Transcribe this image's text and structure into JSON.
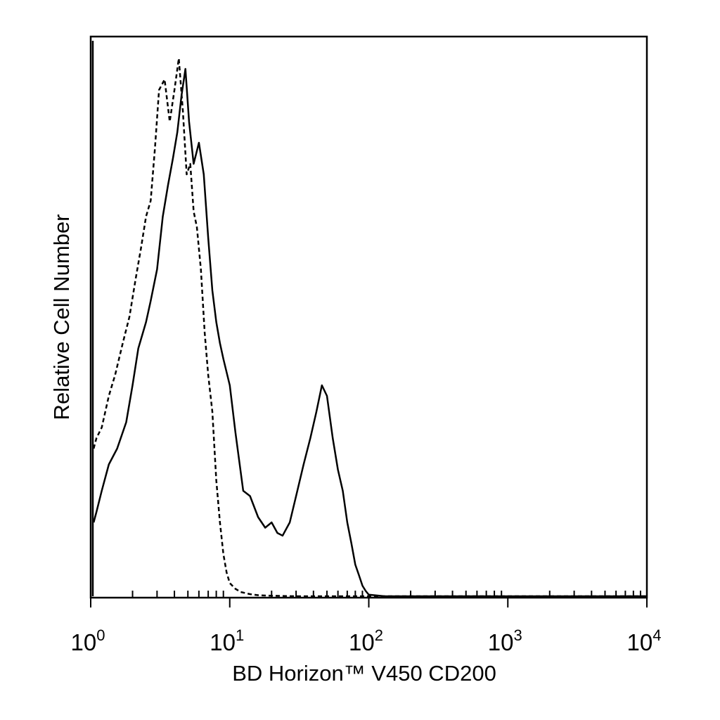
{
  "chart_data": {
    "type": "line",
    "title": "",
    "xlabel": "BD Horizon™ V450 CD200",
    "ylabel": "Relative Cell Number",
    "x_scale": "log10",
    "xlim": [
      1,
      10000
    ],
    "ylim": [
      0,
      1
    ],
    "grid": false,
    "legend": "none",
    "x_ticks": [
      {
        "value": 1,
        "base": "10",
        "exp": "0"
      },
      {
        "value": 10,
        "base": "10",
        "exp": "1"
      },
      {
        "value": 100,
        "base": "10",
        "exp": "2"
      },
      {
        "value": 1000,
        "base": "10",
        "exp": "3"
      },
      {
        "value": 10000,
        "base": "10",
        "exp": "4"
      }
    ],
    "series": [
      {
        "style": "solid",
        "color": "#000000",
        "x": [
          1.05,
          1.1,
          1.2,
          1.35,
          1.55,
          1.8,
          2.0,
          2.2,
          2.5,
          2.7,
          3.0,
          3.3,
          3.6,
          3.9,
          4.2,
          4.5,
          4.8,
          5.1,
          5.5,
          6.0,
          6.5,
          7.0,
          7.5,
          8.0,
          8.5,
          9.0,
          10.0,
          11.0,
          12.5,
          14.0,
          16.0,
          18.0,
          20.0,
          22.0,
          24.0,
          27.0,
          30.0,
          34.0,
          38.0,
          42.0,
          46.0,
          50.0,
          55.0,
          60.0,
          65.0,
          70.0,
          75.0,
          80.0,
          85.0,
          90.0,
          95.0,
          100.0,
          130.0,
          300.0,
          1000.0,
          3000.0,
          10000.0
        ],
        "y": [
          0.14,
          0.16,
          0.2,
          0.25,
          0.28,
          0.33,
          0.4,
          0.47,
          0.52,
          0.56,
          0.62,
          0.72,
          0.78,
          0.83,
          0.88,
          0.95,
          1.0,
          0.9,
          0.82,
          0.86,
          0.8,
          0.68,
          0.58,
          0.52,
          0.48,
          0.45,
          0.4,
          0.31,
          0.2,
          0.19,
          0.15,
          0.13,
          0.14,
          0.12,
          0.115,
          0.14,
          0.19,
          0.25,
          0.3,
          0.35,
          0.4,
          0.38,
          0.3,
          0.24,
          0.2,
          0.14,
          0.1,
          0.06,
          0.04,
          0.02,
          0.01,
          0.003,
          0.0,
          0.0,
          0.0,
          0.0,
          0.0
        ]
      },
      {
        "style": "dashed",
        "color": "#000000",
        "x": [
          1.05,
          1.1,
          1.2,
          1.35,
          1.5,
          1.7,
          1.9,
          2.1,
          2.3,
          2.5,
          2.7,
          2.9,
          3.1,
          3.4,
          3.7,
          4.0,
          4.3,
          4.6,
          4.9,
          5.2,
          5.5,
          5.8,
          6.2,
          6.6,
          7.0,
          7.5,
          8.0,
          8.5,
          9.0,
          9.5,
          10.0,
          11.0,
          12.0,
          14.0,
          16.0,
          20.0,
          30.0,
          50.0,
          100.0,
          1000.0,
          10000.0
        ],
        "y": [
          0.28,
          0.3,
          0.32,
          0.38,
          0.42,
          0.48,
          0.53,
          0.6,
          0.66,
          0.72,
          0.75,
          0.85,
          0.96,
          0.98,
          0.9,
          0.96,
          1.02,
          0.92,
          0.8,
          0.82,
          0.73,
          0.7,
          0.62,
          0.5,
          0.42,
          0.35,
          0.22,
          0.14,
          0.08,
          0.045,
          0.025,
          0.014,
          0.008,
          0.004,
          0.002,
          0.001,
          0.0,
          0.0,
          0.0,
          0.0,
          0.0
        ]
      }
    ]
  }
}
